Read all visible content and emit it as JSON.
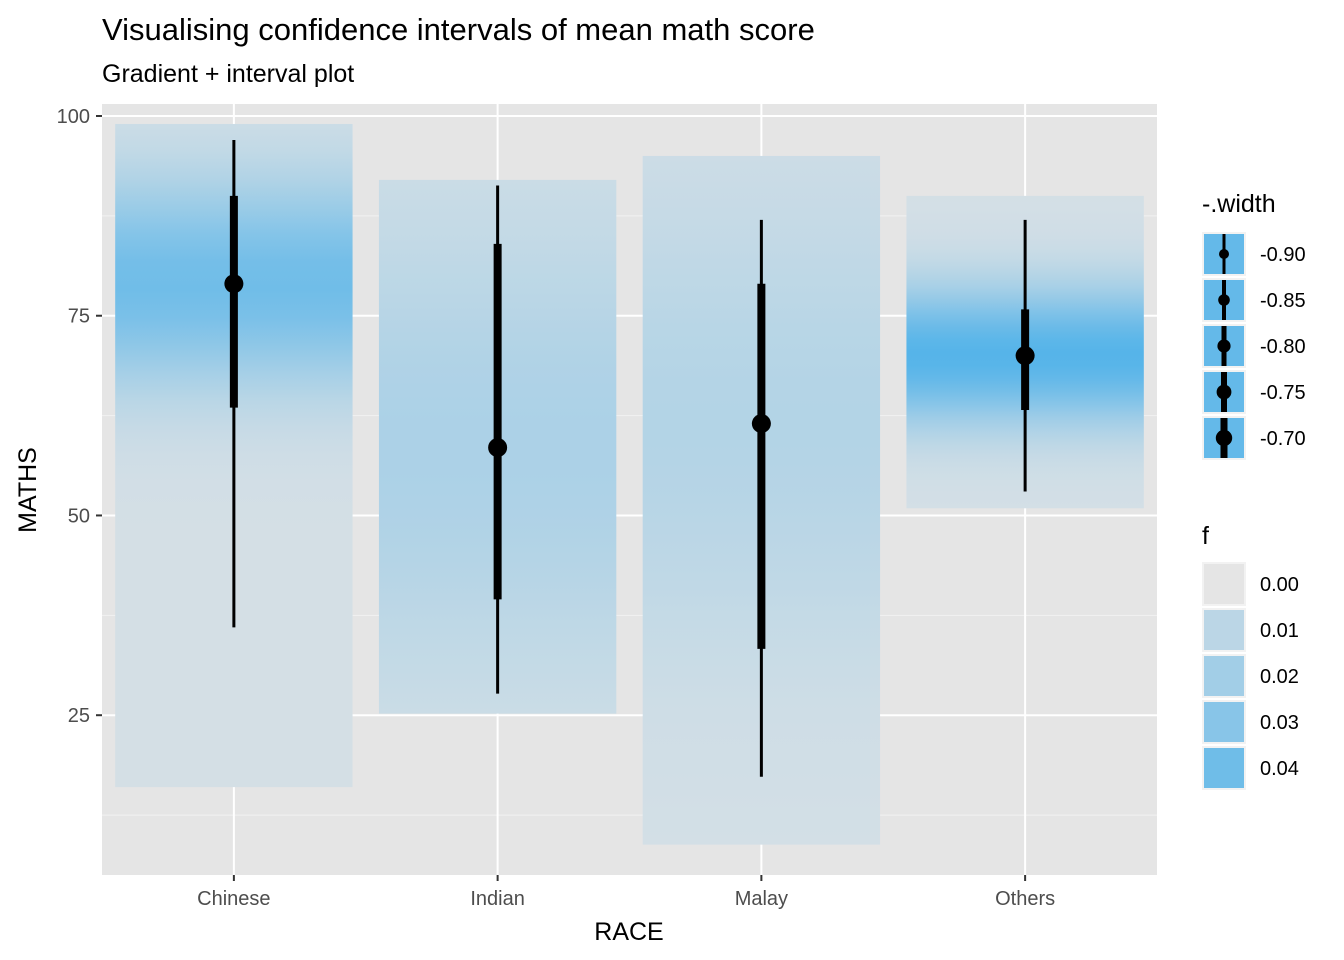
{
  "chart_data": {
    "type": "gradient-interval",
    "title": "Visualising confidence intervals of mean math score",
    "subtitle": "Gradient + interval plot",
    "xlabel": "RACE",
    "ylabel": "MATHS",
    "ylim": [
      5,
      101.5
    ],
    "yticks": [
      25,
      50,
      75,
      100
    ],
    "grid": true,
    "categories": [
      "Chinese",
      "Indian",
      "Malay",
      "Others"
    ],
    "points": [
      79,
      58.5,
      61.5,
      70
    ],
    "intervals": [
      {
        "category": "Chinese",
        "thin": [
          36,
          97
        ],
        "thick": [
          63.5,
          90
        ]
      },
      {
        "category": "Indian",
        "thin": [
          27.7,
          91.3
        ],
        "thick": [
          39.5,
          84
        ]
      },
      {
        "category": "Malay",
        "thin": [
          17.3,
          87
        ],
        "thick": [
          33.3,
          79
        ]
      },
      {
        "category": "Others",
        "thin": [
          53,
          87
        ],
        "thick": [
          63.2,
          75.8
        ]
      }
    ],
    "gradient_extent": [
      {
        "category": "Chinese",
        "range": [
          16,
          99
        ]
      },
      {
        "category": "Indian",
        "range": [
          25.2,
          92
        ]
      },
      {
        "category": "Malay",
        "range": [
          8.8,
          95
        ]
      },
      {
        "category": "Others",
        "range": [
          50.9,
          90
        ]
      }
    ],
    "density_peak": [
      {
        "category": "Chinese",
        "center": 79,
        "max_f": 0.04
      },
      {
        "category": "Indian",
        "center": 58.5,
        "max_f": 0.016
      },
      {
        "category": "Malay",
        "center": 61.5,
        "max_f": 0.013
      },
      {
        "category": "Others",
        "center": 70,
        "max_f": 0.05
      }
    ],
    "fill_color": "#56B4E9",
    "legend": [
      {
        "title": "-.width",
        "labels": [
          "-0.90",
          "-0.85",
          "-0.80",
          "-0.75",
          "-0.70"
        ]
      },
      {
        "title": "f",
        "labels": [
          "0.00",
          "0.01",
          "0.02",
          "0.03",
          "0.04"
        ]
      }
    ],
    "legend_position": "right",
    "panel_background": "#E5E5E5"
  }
}
